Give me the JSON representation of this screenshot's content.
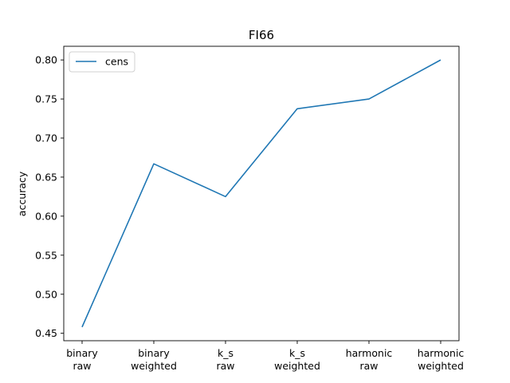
{
  "chart_data": {
    "type": "line",
    "title": "FI66",
    "xlabel": "",
    "ylabel": "accuracy",
    "categories": [
      [
        "binary",
        "raw"
      ],
      [
        "binary",
        "weighted"
      ],
      [
        "k_s",
        "raw"
      ],
      [
        "k_s",
        "weighted"
      ],
      [
        "harmonic",
        "raw"
      ],
      [
        "harmonic",
        "weighted"
      ]
    ],
    "series": [
      {
        "name": "cens",
        "color": "#1f77b4",
        "values": [
          0.458,
          0.667,
          0.625,
          0.7375,
          0.75,
          0.8
        ]
      }
    ],
    "ylim": [
      0.4405,
      0.8175
    ],
    "yticks": [
      "0.45",
      "0.50",
      "0.55",
      "0.60",
      "0.65",
      "0.70",
      "0.75",
      "0.80"
    ],
    "grid": false,
    "legend": "upper left"
  }
}
